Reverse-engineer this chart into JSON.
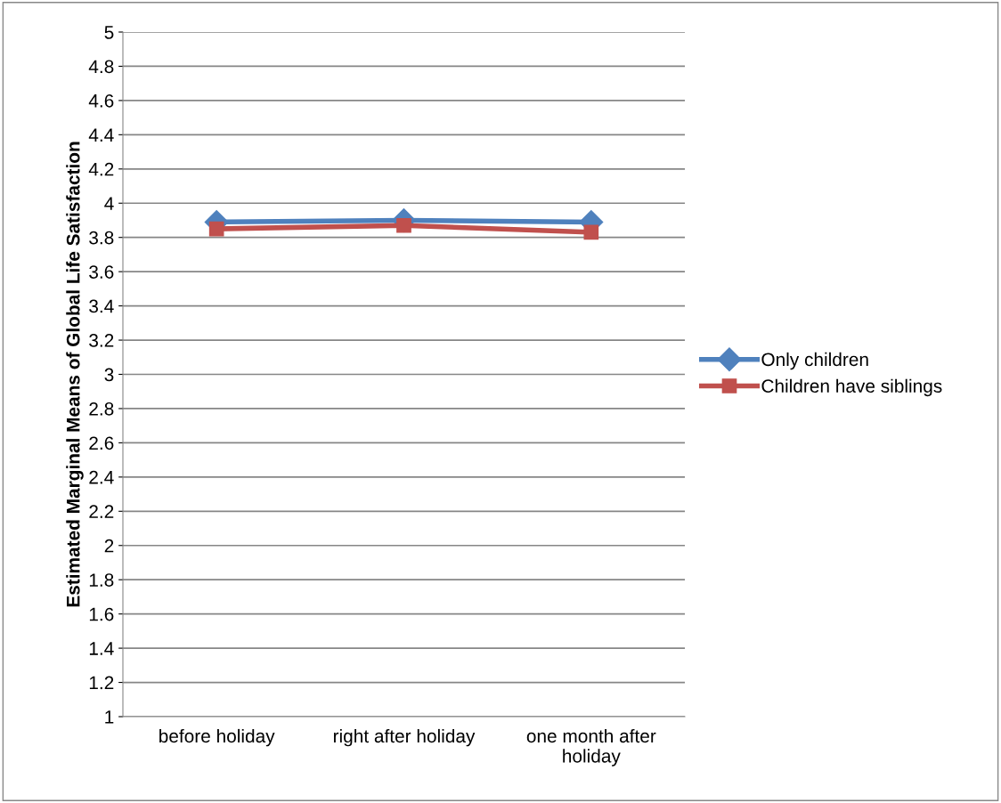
{
  "chart_data": {
    "type": "line",
    "ylabel": "Estimated Marginal Means of Global Life Satisfaction",
    "categories": [
      "before holiday",
      "right after holiday",
      "one month after\nholiday"
    ],
    "series": [
      {
        "name": "Only children",
        "color": "#4f81bd",
        "values": [
          3.89,
          3.9,
          3.89
        ],
        "marker": "diamond"
      },
      {
        "name": "Children have siblings",
        "color": "#c0504d",
        "values": [
          3.85,
          3.87,
          3.83
        ],
        "marker": "square"
      }
    ],
    "ylim": [
      1,
      5
    ],
    "yticks": [
      1,
      1.2,
      1.4,
      1.6,
      1.8,
      2,
      2.2,
      2.4,
      2.6,
      2.8,
      3,
      3.2,
      3.4,
      3.6,
      3.8,
      4,
      4.2,
      4.4,
      4.6,
      4.8,
      5
    ],
    "grid": "y",
    "legend": "right",
    "line_style": "solid"
  }
}
